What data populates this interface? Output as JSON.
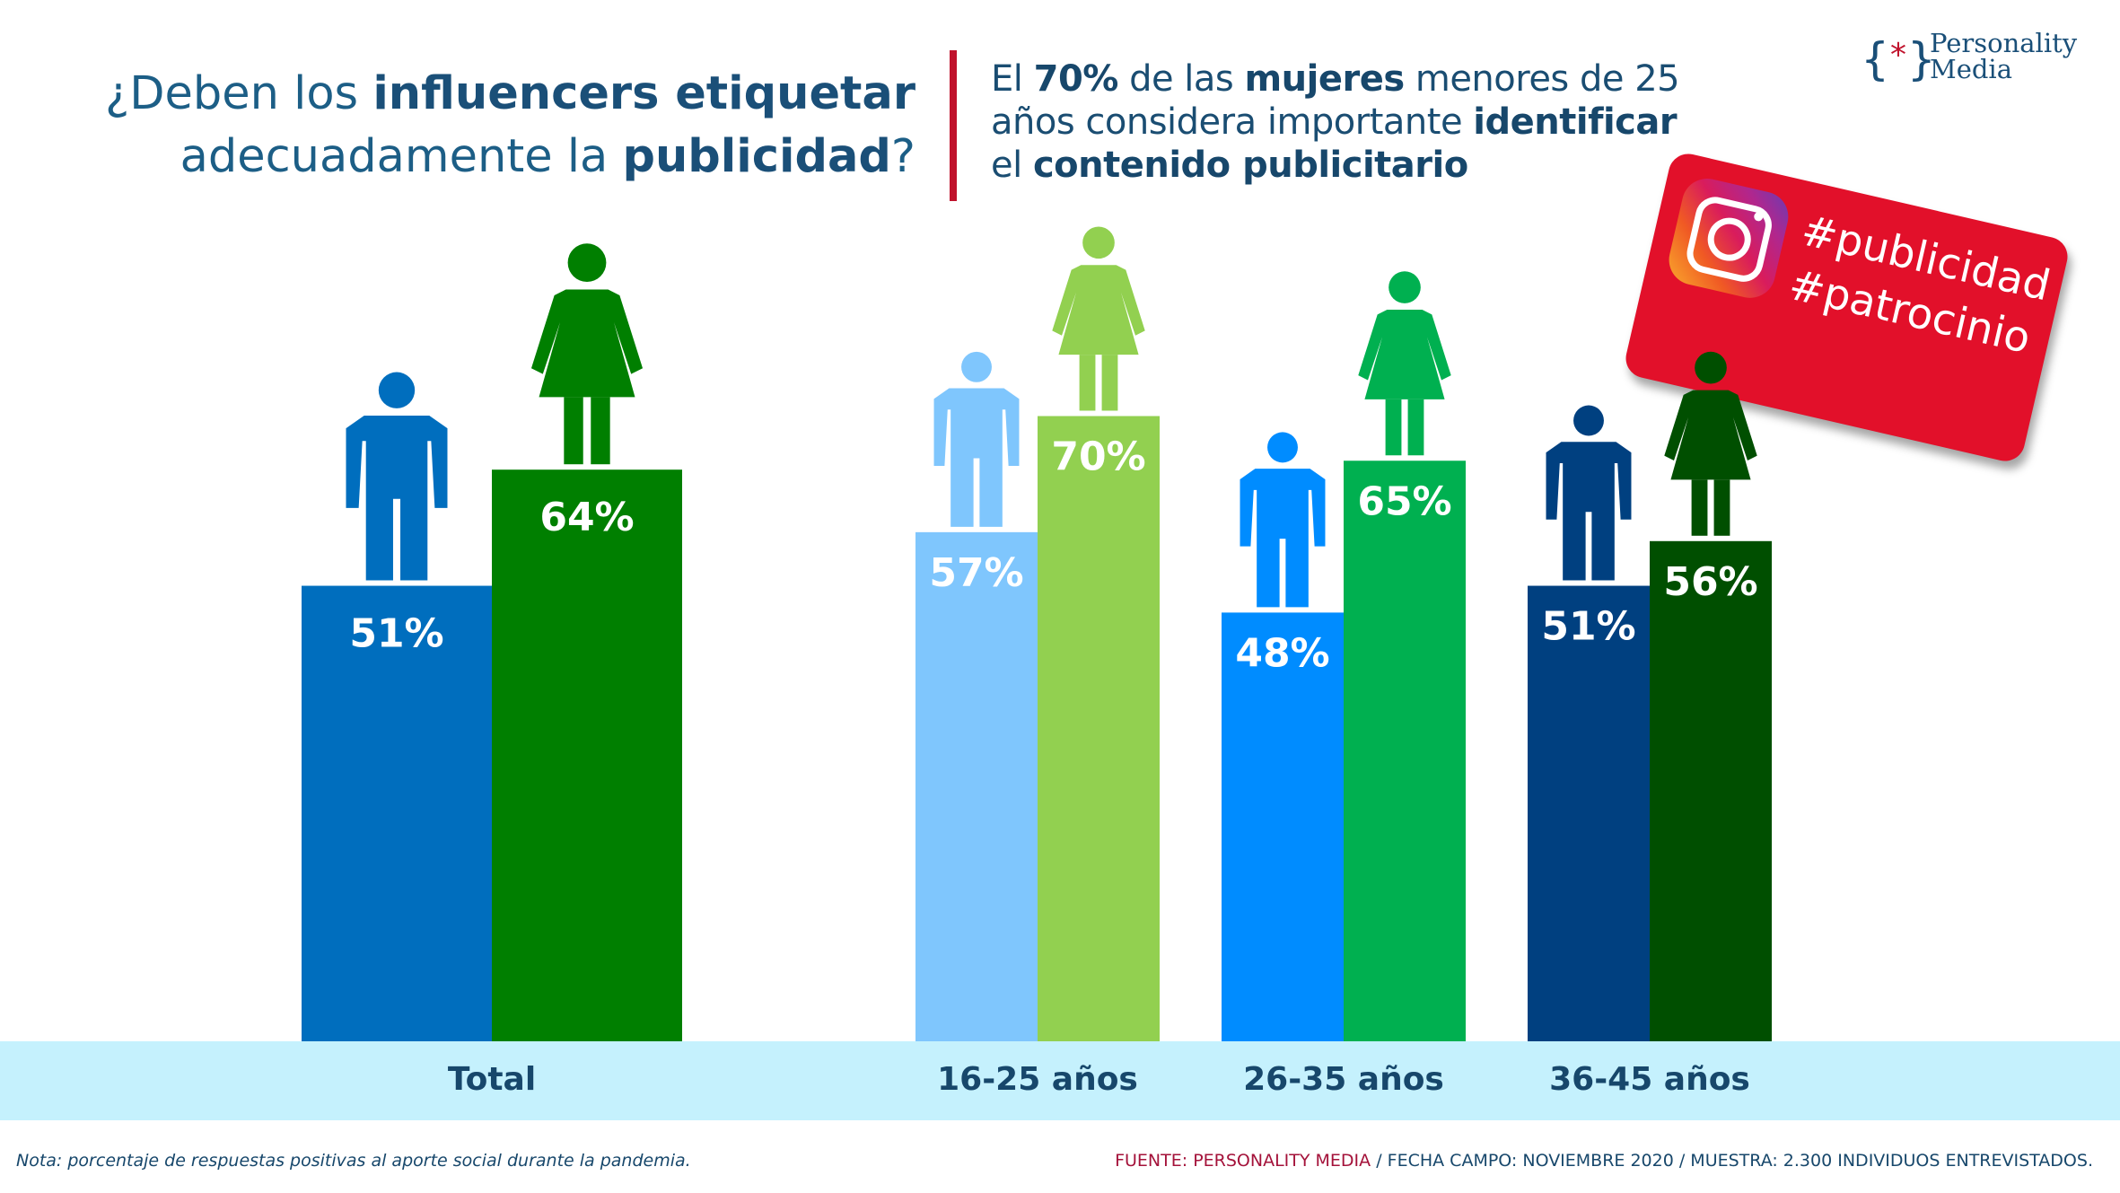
{
  "title": {
    "part1": "¿Deben los ",
    "bold1": "influencers etiquetar",
    "part2": "adecuadamente la ",
    "bold2": "publicidad",
    "part3": "?"
  },
  "subtitle": {
    "s1": "El ",
    "b1": "70%",
    "s2": " de las ",
    "b2": "mujeres",
    "s3": " menores de 25",
    "s4": "años considera importante ",
    "b3": "identificar",
    "s5": "el ",
    "b4": "contenido publicitario"
  },
  "logo": {
    "line1": "Personality",
    "line2": "Media"
  },
  "sticker": {
    "tag1": "#publicidad",
    "tag2": "#patrocinio",
    "icon": "instagram-icon"
  },
  "chart_data": {
    "type": "bar",
    "categories": [
      "Total",
      "16-25 años",
      "26-35 años",
      "36-45 años"
    ],
    "series": [
      {
        "values": [
          51,
          57,
          48,
          51
        ],
        "icons": "man-icon"
      },
      {
        "values": [
          64,
          70,
          65,
          56
        ],
        "icons": "woman-icon"
      }
    ],
    "value_labels": [
      [
        "51%",
        "57%",
        "48%",
        "51%"
      ],
      [
        "64%",
        "70%",
        "65%",
        "56%"
      ]
    ],
    "colors": [
      [
        "#006ebe",
        "#007f00"
      ],
      [
        "#7fc6fd",
        "#92d050"
      ],
      [
        "#008cff",
        "#00b050"
      ],
      [
        "#004080",
        "#004f00"
      ]
    ],
    "ylim": [
      0,
      100
    ],
    "grid": false
  },
  "footer": {
    "note": "Nota: porcentaje de respuestas positivas al aporte social durante la pandemia.",
    "source_brand": "FUENTE: PERSONALITY MEDIA",
    "source_rest": " / FECHA CAMPO: NOVIEMBRE 2020 / MUESTRA: 2.300 INDIVIDUOS ENTREVISTADOS."
  }
}
